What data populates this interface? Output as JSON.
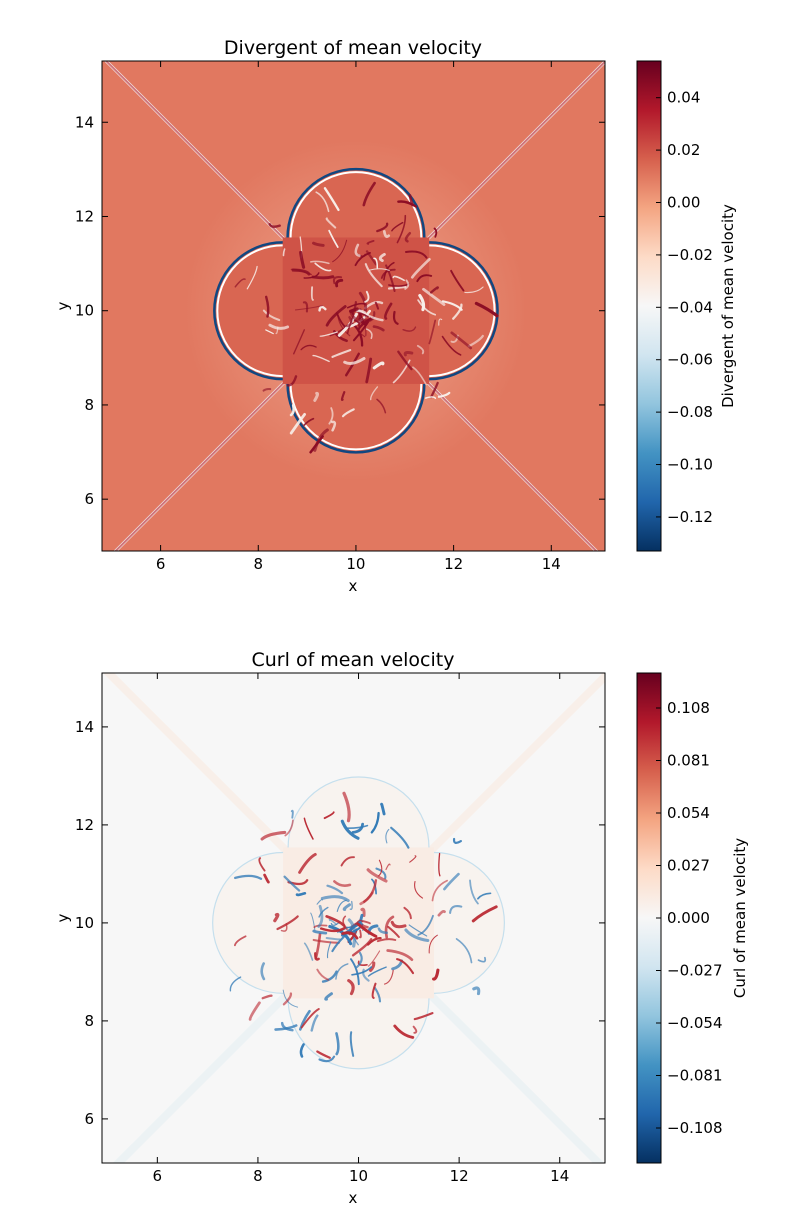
{
  "colors": {
    "rdbu": [
      "#053061",
      "#2166ac",
      "#4393c3",
      "#92c5de",
      "#d1e5f0",
      "#f7f7f7",
      "#fddbc7",
      "#f4a582",
      "#d6604d",
      "#b2182b",
      "#67001f"
    ]
  },
  "chart_data": [
    {
      "type": "heatmap",
      "title": "Divergent of mean velocity",
      "xlabel": "x",
      "ylabel": "y",
      "xlim": [
        4.8,
        15.1
      ],
      "ylim": [
        4.9,
        15.3
      ],
      "xticks": [
        6,
        8,
        10,
        12,
        14
      ],
      "yticks": [
        6,
        8,
        10,
        12,
        14
      ],
      "colormap": "RdBu_r",
      "colorbar": {
        "label": "Divergent of mean velocity",
        "vmin": -0.133,
        "vmax": 0.054,
        "ticks": [
          0.04,
          0.02,
          0.0,
          -0.02,
          -0.04,
          -0.06,
          -0.08,
          -0.1,
          -0.12
        ],
        "tick_labels": [
          "0.04",
          "0.02",
          "0.00",
          "−0.02",
          "−0.04",
          "−0.06",
          "−0.08",
          "−0.10",
          "−0.12"
        ]
      },
      "background_value": 0.01,
      "features": {
        "center": [
          10,
          10
        ],
        "lobe_radius": 1.4,
        "lobe_offset": 1.5,
        "inner_square_half": 1.5,
        "diagonal_bands": true
      }
    },
    {
      "type": "heatmap",
      "title": "Curl of mean velocity",
      "xlabel": "x",
      "ylabel": "y",
      "xlim": [
        4.9,
        14.9
      ],
      "ylim": [
        5.1,
        15.1
      ],
      "xticks": [
        6,
        8,
        10,
        12,
        14
      ],
      "yticks": [
        6,
        8,
        10,
        12,
        14
      ],
      "colormap": "RdBu_r",
      "colorbar": {
        "label": "Curl of mean velocity",
        "vmin": -0.126,
        "vmax": 0.126,
        "ticks": [
          0.108,
          0.081,
          0.054,
          0.027,
          0.0,
          -0.027,
          -0.054,
          -0.081,
          -0.108
        ],
        "tick_labels": [
          "0.108",
          "0.081",
          "0.054",
          "0.027",
          "0.000",
          "−0.027",
          "−0.054",
          "−0.081",
          "−0.108"
        ]
      },
      "background_value": 0.0,
      "features": {
        "center": [
          10,
          10
        ],
        "lobe_radius": 1.4,
        "lobe_offset": 1.5,
        "inner_square_half": 1.5,
        "diagonal_bands": true
      }
    }
  ]
}
